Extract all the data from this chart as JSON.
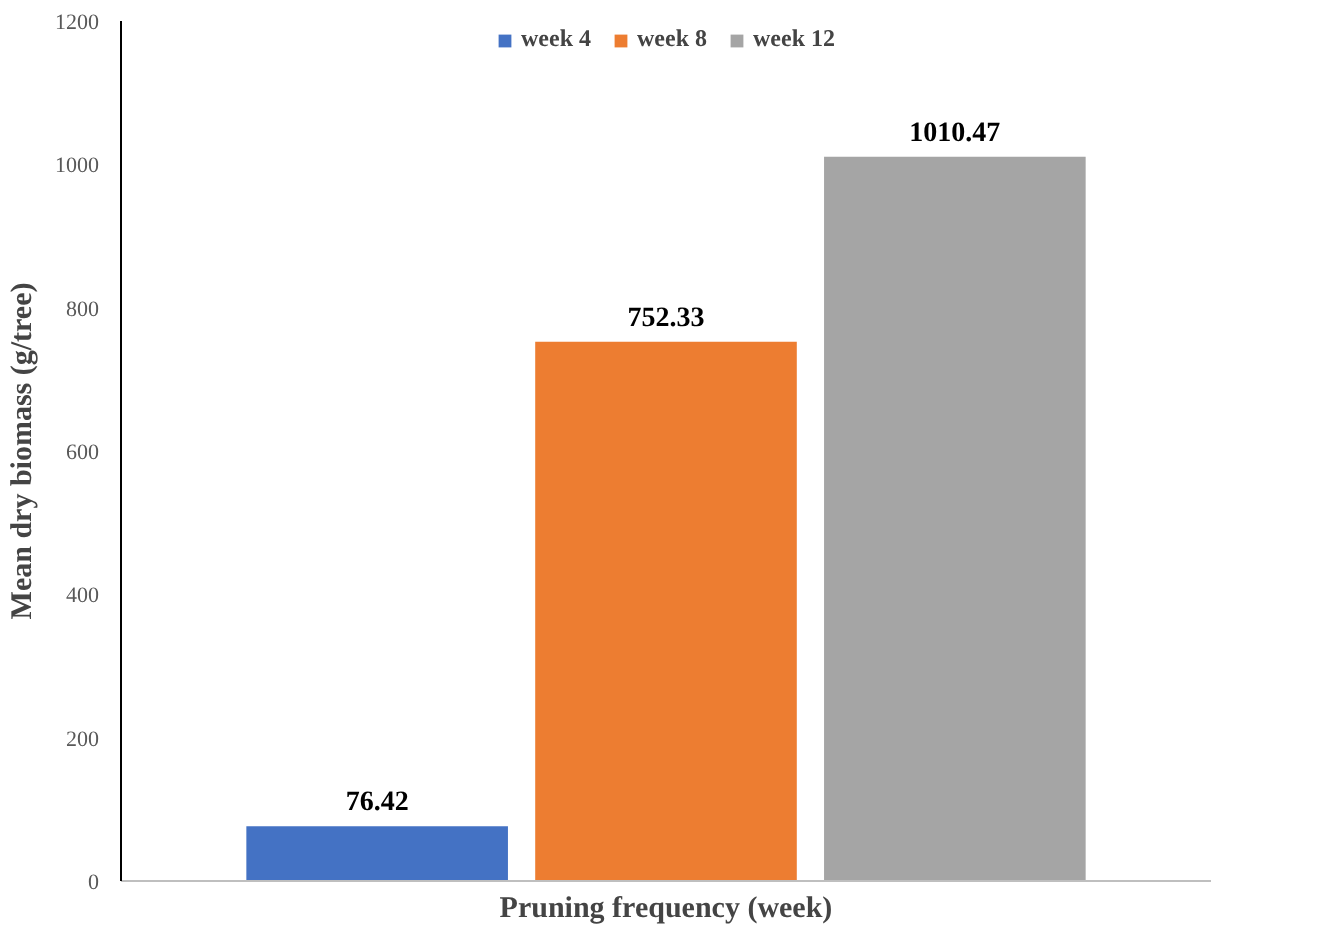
{
  "chart_data": {
    "type": "bar",
    "categories": [
      null
    ],
    "xlabel": "Pruning frequency (week)",
    "ylabel": "Mean dry biomass (g/tree)",
    "series": [
      {
        "name": "week 4",
        "color": "#4472c4",
        "values": [
          76.42
        ]
      },
      {
        "name": "week 8",
        "color": "#ed7d31",
        "values": [
          752.33
        ]
      },
      {
        "name": "week 12",
        "color": "#a5a5a5",
        "values": [
          1010.47
        ]
      }
    ],
    "ylim": [
      0,
      1200
    ],
    "yticks": [
      0,
      200,
      400,
      600,
      800,
      1000,
      1200
    ],
    "data_labels": true,
    "legend": "top",
    "grid": false
  }
}
